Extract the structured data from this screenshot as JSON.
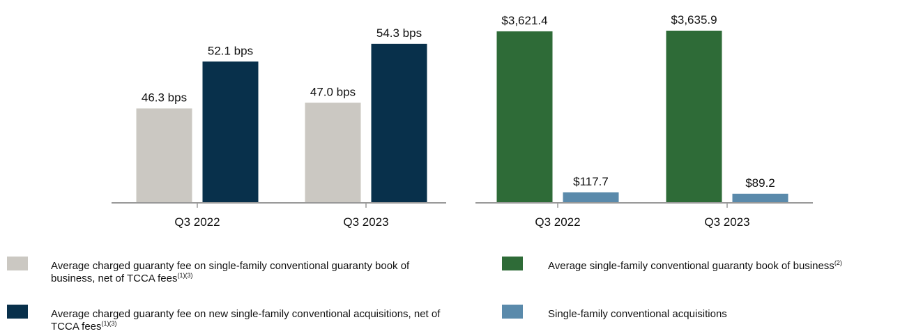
{
  "chart_data": [
    {
      "type": "bar",
      "categories": [
        "Q3 2022",
        "Q3 2023"
      ],
      "series": [
        {
          "name": "Average charged guaranty fee on single-family conventional guaranty book of business, net of TCCA fees",
          "footnote_refs": "(1)(3)",
          "color": "#cbc8c2",
          "values": [
            46.3,
            47.0
          ],
          "value_labels": [
            "46.3 bps",
            "47.0 bps"
          ]
        },
        {
          "name": "Average charged guaranty fee on new single-family conventional acquisitions, net of TCCA fees",
          "footnote_refs": "(1)(3)",
          "color": "#08304b",
          "values": [
            52.1,
            54.3
          ],
          "value_labels": [
            "52.1 bps",
            "54.3 bps"
          ]
        }
      ],
      "ylim": [
        34.6,
        58
      ]
    },
    {
      "type": "bar",
      "categories": [
        "Q3 2022",
        "Q3 2023"
      ],
      "series": [
        {
          "name": "Average single-family conventional guaranty book of business",
          "footnote_refs": "(2)",
          "color": "#2e6b37",
          "values": [
            3621.4,
            3635.9
          ],
          "value_labels": [
            "$3,621.4",
            "$3,635.9"
          ]
        },
        {
          "name": "Single-family conventional acquisitions",
          "color": "#5a8aab",
          "values": [
            117.7,
            89.2
          ],
          "value_labels": [
            "$117.7",
            "$89.2"
          ]
        }
      ],
      "ylim": [
        -110,
        4000
      ]
    }
  ]
}
